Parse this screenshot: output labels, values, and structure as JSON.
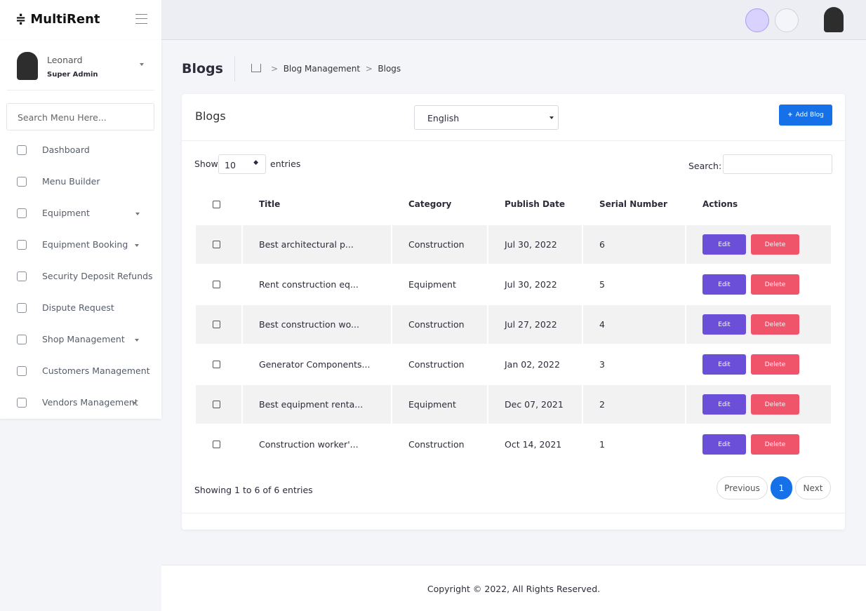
{
  "brand": "MultiRent",
  "user": {
    "name": "Leonard",
    "role": "Super Admin"
  },
  "sidebar": {
    "search_placeholder": "Search Menu Here...",
    "menu": [
      "Dashboard",
      "Menu Builder",
      "Equipment",
      "Equipment Booking",
      "Security Deposit Refunds",
      "Dispute Request",
      "Shop Management",
      "Customers Management",
      "Vendors Management"
    ]
  },
  "page_header": {
    "title": "Blogs",
    "breadcrumb": [
      "Blog Management",
      "Blogs"
    ]
  },
  "card": {
    "title": "Blogs",
    "language": "English",
    "add_button": "Add Blog"
  },
  "table": {
    "show": "Show",
    "page_size": "10",
    "entries": "entries",
    "search": "Search:",
    "columns": [
      "Title",
      "Category",
      "Publish Date",
      "Serial Number",
      "Actions"
    ],
    "rows": [
      [
        "Best architectural p...",
        "Construction",
        "Jul 30, 2022",
        "6"
      ],
      [
        "Rent construction eq...",
        "Equipment",
        "Jul 30, 2022",
        "5"
      ],
      [
        "Best construction wo...",
        "Construction",
        "Jul 27, 2022",
        "4"
      ],
      [
        "Generator Components...",
        "Construction",
        "Jan 02, 2022",
        "3"
      ],
      [
        "Best equipment renta...",
        "Equipment",
        "Dec 07, 2021",
        "2"
      ],
      [
        "Construction worker'...",
        "Construction",
        "Oct 14, 2021",
        "1"
      ]
    ],
    "actions": [
      "Edit",
      "Delete"
    ],
    "info": "Showing 1 to 6 of 6 entries",
    "pagination": [
      "Previous",
      "1",
      "Next"
    ]
  },
  "footer": "Copyright © 2022, All Rights Reserved."
}
